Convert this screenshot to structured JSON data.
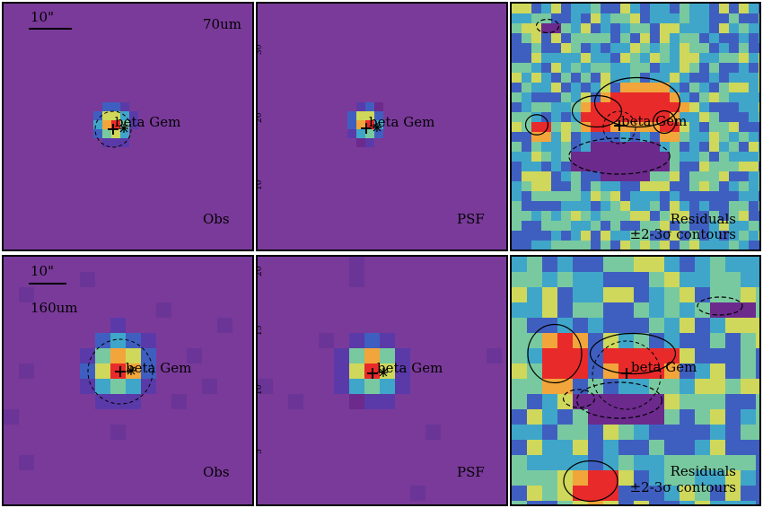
{
  "colors": {
    "background": "#7a3a9a",
    "map_scale": [
      "#6b2a8c",
      "#5a3aa8",
      "#3f5fc0",
      "#3fa6c9",
      "#79c9a0",
      "#cfd85a",
      "#f2a53a",
      "#e82a2a"
    ]
  },
  "target_label": "beta Gem",
  "markers": {
    "cross": "+",
    "star": "*"
  },
  "panels": [
    {
      "id": "obs-70",
      "band": "70um",
      "type": "Obs",
      "scalebar": "10\"",
      "y_ticks": []
    },
    {
      "id": "psf-70",
      "band": "",
      "type": "PSF",
      "scalebar": "",
      "y_ticks": [
        "30",
        "20",
        "10"
      ]
    },
    {
      "id": "res-70",
      "band": "",
      "type": "Residuals",
      "contours": "±2-3σ contours",
      "scalebar": "",
      "y_ticks": []
    },
    {
      "id": "obs-160",
      "band": "160um",
      "type": "Obs",
      "scalebar": "10\"",
      "y_ticks": []
    },
    {
      "id": "psf-160",
      "band": "",
      "type": "PSF",
      "scalebar": "",
      "y_ticks": [
        "20",
        "15",
        "10",
        "5"
      ]
    },
    {
      "id": "res-160",
      "band": "",
      "type": "Residuals",
      "contours": "±2-3σ contours",
      "scalebar": "",
      "y_ticks": []
    }
  ]
}
